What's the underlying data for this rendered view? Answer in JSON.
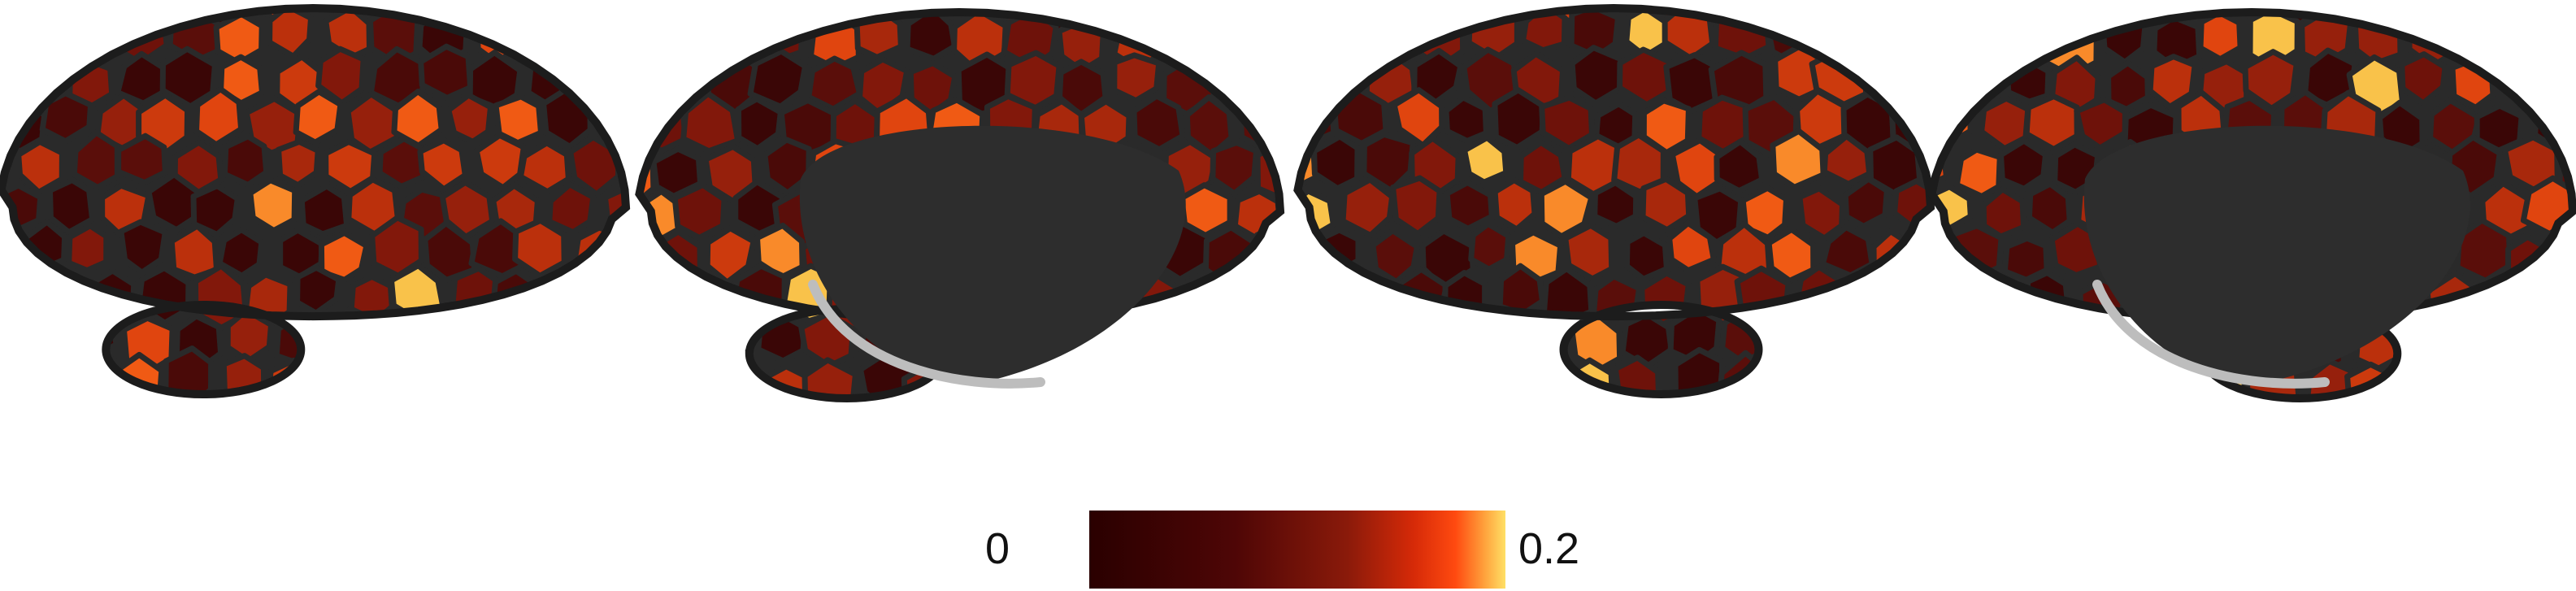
{
  "figure": {
    "views": [
      {
        "view": "left-lateral"
      },
      {
        "view": "left-medial"
      },
      {
        "view": "right-lateral"
      },
      {
        "view": "right-medial"
      }
    ],
    "parcel_border_color": "#2a2a2a",
    "medial_wall_color": "#2d2d2d"
  },
  "colorbar": {
    "min_label": "0",
    "max_label": "0.2",
    "colormap": "hot",
    "stops": [
      {
        "offset": 0.0,
        "color": "#2a0000"
      },
      {
        "offset": 0.35,
        "color": "#4e0606"
      },
      {
        "offset": 0.62,
        "color": "#8a1a0a"
      },
      {
        "offset": 0.78,
        "color": "#d62a08"
      },
      {
        "offset": 0.88,
        "color": "#ff4a10"
      },
      {
        "offset": 0.95,
        "color": "#ffa23c"
      },
      {
        "offset": 1.0,
        "color": "#ffe066"
      }
    ]
  }
}
